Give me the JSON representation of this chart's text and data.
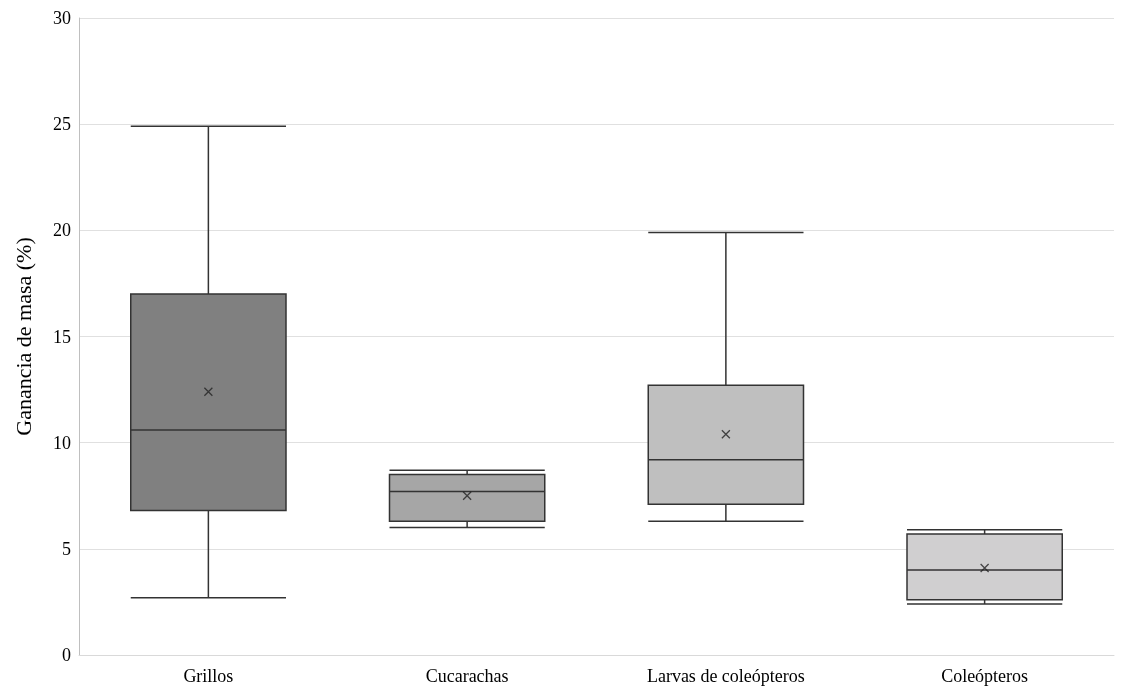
{
  "chart_data": {
    "type": "box",
    "ylabel": "Ganancia de masa (%)",
    "categories": [
      "Grillos",
      "Cucarachas",
      "Larvas de coleópteros",
      "Coleópteros"
    ],
    "boxes": [
      {
        "low": 2.7,
        "q1": 6.8,
        "median": 10.6,
        "q3": 17.0,
        "high": 24.9,
        "mean": 12.4
      },
      {
        "low": 6.0,
        "q1": 6.3,
        "median": 7.7,
        "q3": 8.5,
        "high": 8.7,
        "mean": 7.5
      },
      {
        "low": 6.3,
        "q1": 7.1,
        "median": 9.2,
        "q3": 12.7,
        "high": 19.9,
        "mean": 10.4
      },
      {
        "low": 2.4,
        "q1": 2.6,
        "median": 4.0,
        "q3": 5.7,
        "high": 5.9,
        "mean": 4.1
      }
    ],
    "colors": [
      "#808080",
      "#a6a6a6",
      "#bfbfbf",
      "#d0cfd0"
    ],
    "ylim": [
      0,
      30
    ],
    "yticks": [
      0,
      5,
      10,
      15,
      20,
      25,
      30
    ],
    "grid": "y",
    "marker": "cross"
  }
}
